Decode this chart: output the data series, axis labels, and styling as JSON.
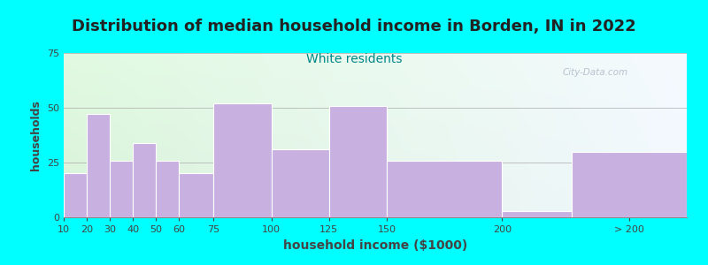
{
  "title": "Distribution of median household income in Borden, IN in 2022",
  "subtitle": "White residents",
  "xlabel": "household income ($1000)",
  "ylabel": "households",
  "background_color": "#00FFFF",
  "bar_color": "#c8b0e0",
  "bar_edge_color": "#ffffff",
  "title_fontsize": 13,
  "subtitle_fontsize": 10,
  "subtitle_color": "#008888",
  "ylabel_fontsize": 9,
  "xlabel_fontsize": 10,
  "ylim": [
    0,
    75
  ],
  "yticks": [
    0,
    25,
    50,
    75
  ],
  "bar_labels": [
    "10",
    "20",
    "30",
    "40",
    "50",
    "60",
    "75",
    "100",
    "125",
    "150",
    "200",
    "> 200"
  ],
  "bar_values": [
    20,
    47,
    26,
    34,
    26,
    20,
    52,
    31,
    51,
    26,
    3,
    30
  ],
  "watermark": "City-Data.com",
  "gradient_topleft": [
    0.88,
    0.98,
    0.88
  ],
  "gradient_topright": [
    0.96,
    0.98,
    1.0
  ],
  "gradient_bottomleft": [
    0.85,
    0.95,
    0.85
  ],
  "gradient_bottomright": [
    0.95,
    0.97,
    1.0
  ]
}
